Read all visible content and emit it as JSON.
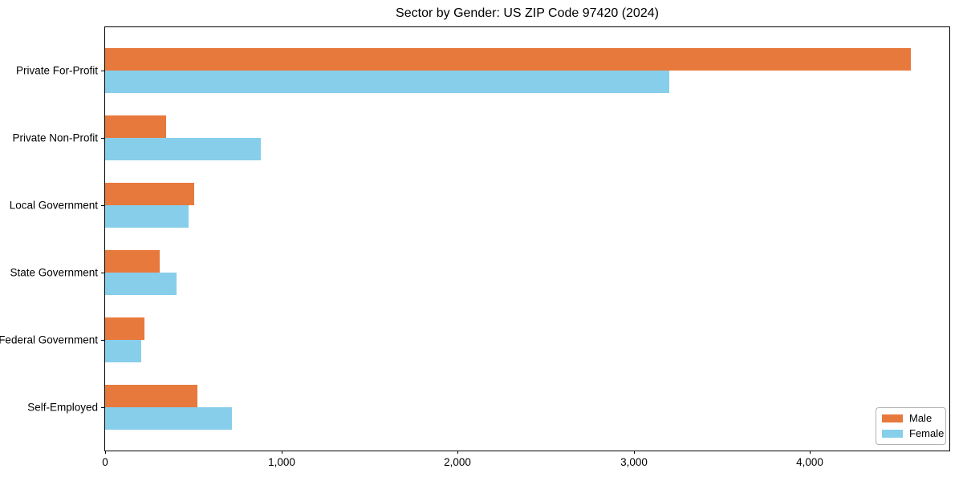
{
  "title": "Sector by Gender: US ZIP Code 97420 (2024)",
  "chart_data": {
    "type": "bar",
    "orientation": "horizontal",
    "title": "Sector by Gender: US ZIP Code 97420 (2024)",
    "categories": [
      "Private For-Profit",
      "Private Non-Profit",
      "Local Government",
      "State Government",
      "Federal Government",
      "Self-Employed"
    ],
    "series": [
      {
        "name": "Male",
        "color": "#e8793c",
        "values": [
          4570,
          345,
          505,
          310,
          225,
          525
        ]
      },
      {
        "name": "Female",
        "color": "#87ceeb",
        "values": [
          3200,
          885,
          475,
          405,
          205,
          720
        ]
      }
    ],
    "xlabel": "",
    "ylabel": "",
    "xlim": [
      0,
      4790
    ],
    "x_ticks": [
      0,
      1000,
      2000,
      3000,
      4000
    ],
    "x_tick_labels": [
      "0",
      "1,000",
      "2,000",
      "3,000",
      "4,000"
    ],
    "grid": false,
    "legend": {
      "position": "lower right",
      "entries": [
        "Male",
        "Female"
      ]
    },
    "colors": {
      "axis": "#000000",
      "legend_border": "#b3b3b3",
      "background": "#ffffff"
    }
  }
}
